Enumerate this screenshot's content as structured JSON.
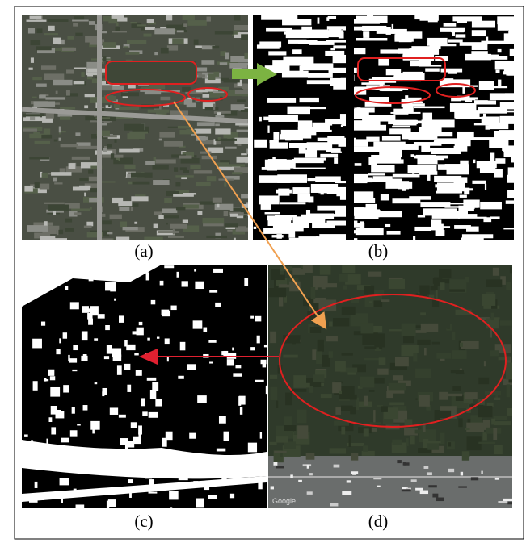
{
  "figure": {
    "panels": [
      {
        "label": "(a)"
      },
      {
        "label": "(b)"
      },
      {
        "label": "(c)"
      },
      {
        "label": "(d)",
        "watermark": "Google"
      }
    ]
  }
}
